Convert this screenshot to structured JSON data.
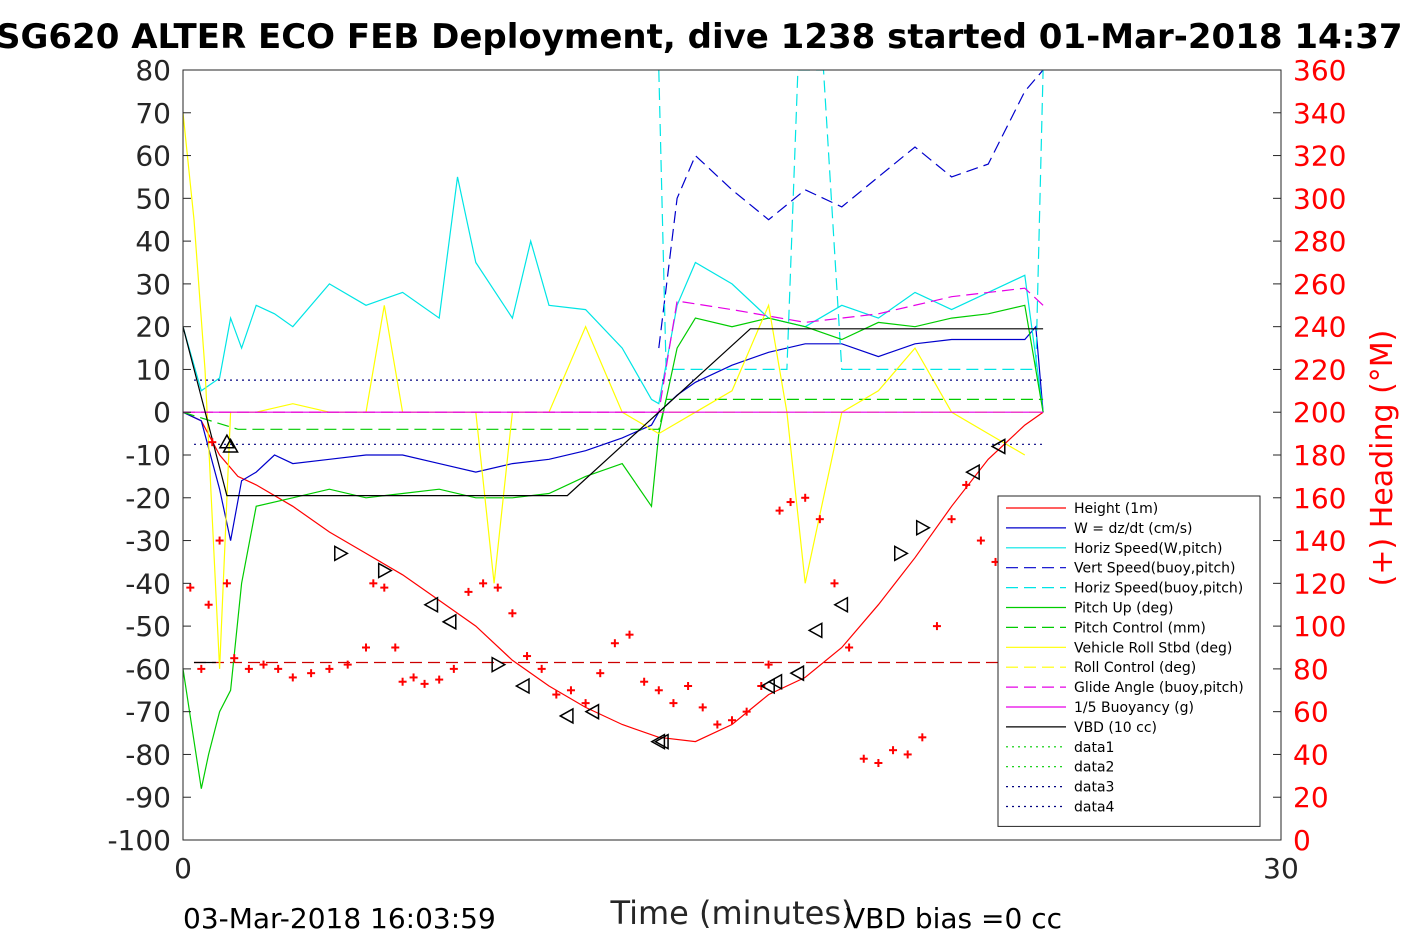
{
  "chart_data": {
    "type": "line",
    "title": "SG620 ALTER ECO FEB Deployment, dive 1238 started 01-Mar-2018 14:37",
    "xlabel": "Time (minutes)",
    "ylabel_right": "(+) Heading (°M)",
    "xlim": [
      0,
      30
    ],
    "ylim_left": [
      -100,
      80
    ],
    "ylim_right": [
      0,
      360
    ],
    "x_ticks": [
      "0",
      "30"
    ],
    "y_ticks_left": [
      "80",
      "70",
      "60",
      "50",
      "40",
      "30",
      "20",
      "10",
      "0",
      "-10",
      "-20",
      "-30",
      "-40",
      "-50",
      "-60",
      "-70",
      "-80",
      "-90",
      "-100"
    ],
    "y_ticks_right": [
      "360",
      "340",
      "320",
      "300",
      "280",
      "260",
      "240",
      "220",
      "200",
      "180",
      "160",
      "140",
      "120",
      "100",
      "80",
      "60",
      "40",
      "20",
      "0"
    ],
    "footer_left": "03-Mar-2018 16:03:59",
    "footer_right": "VBD bias =0 cc",
    "legend_position": "lower-right",
    "grid": false,
    "series": [
      {
        "name": "Height (1m)",
        "color": "#ff0000",
        "style": "solid",
        "x": [
          0.0,
          0.5,
          1.0,
          1.5,
          2.0,
          3.0,
          4.0,
          5.0,
          6.0,
          7.0,
          8.0,
          9.0,
          10.0,
          11.0,
          12.0,
          13.0,
          14.0,
          15.0,
          16.0,
          17.0,
          18.0,
          19.0,
          20.0,
          21.0,
          22.0,
          23.0,
          23.5
        ],
        "y": [
          0,
          -2,
          -10,
          -15,
          -17,
          -22,
          -28,
          -33,
          -38,
          -44,
          -50,
          -58,
          -64,
          -69,
          -73,
          -76,
          -77,
          -73,
          -66,
          -62,
          -55,
          -45,
          -34,
          -22,
          -11,
          -3,
          0
        ]
      },
      {
        "name": "W = dz/dt (cm/s)",
        "color": "#0000cc",
        "style": "solid",
        "x": [
          0.0,
          0.5,
          1.0,
          1.3,
          1.6,
          2.0,
          2.5,
          3.0,
          4.0,
          5.0,
          6.0,
          7.0,
          8.0,
          9.0,
          10.0,
          11.0,
          12.0,
          12.8,
          13.0,
          13.5,
          14.0,
          15.0,
          16.0,
          17.0,
          18.0,
          19.0,
          20.0,
          21.0,
          22.0,
          23.0,
          23.3,
          23.5
        ],
        "y": [
          0,
          -2,
          -18,
          -30,
          -16,
          -14,
          -10,
          -12,
          -11,
          -10,
          -10,
          -12,
          -14,
          -12,
          -11,
          -9,
          -6,
          -3,
          0,
          4,
          7,
          11,
          14,
          16,
          16,
          13,
          16,
          17,
          17,
          17,
          20,
          0
        ]
      },
      {
        "name": "Horiz Speed(W,pitch)",
        "color": "#00e5e5",
        "style": "solid",
        "x": [
          0.0,
          0.5,
          1.0,
          1.3,
          1.6,
          2.0,
          2.5,
          3.0,
          4.0,
          5.0,
          6.0,
          7.0,
          7.5,
          8.0,
          9.0,
          9.5,
          10.0,
          11.0,
          12.0,
          12.8,
          13.0,
          13.5,
          14.0,
          15.0,
          16.0,
          17.0,
          18.0,
          19.0,
          20.0,
          21.0,
          22.0,
          23.0,
          23.5
        ],
        "y": [
          20,
          5,
          8,
          22,
          15,
          25,
          23,
          20,
          30,
          25,
          28,
          22,
          55,
          35,
          22,
          40,
          25,
          24,
          15,
          3,
          2,
          25,
          35,
          30,
          22,
          20,
          25,
          22,
          28,
          24,
          28,
          32,
          0
        ]
      },
      {
        "name": "Vert Speed(buoy,pitch)",
        "color": "#0000cc",
        "style": "dashed",
        "x": [
          13.0,
          13.5,
          14.0,
          15.0,
          16.0,
          17.0,
          18.0,
          19.0,
          20.0,
          21.0,
          22.0,
          23.0,
          23.5
        ],
        "y": [
          15,
          50,
          60,
          52,
          45,
          52,
          48,
          55,
          62,
          55,
          58,
          75,
          80
        ]
      },
      {
        "name": "Horiz Speed(buoy,pitch)",
        "color": "#00e5e5",
        "style": "dashed",
        "x": [
          13.0,
          13.2,
          16.5,
          16.8,
          17.5,
          18.0,
          23.3,
          23.5
        ],
        "y": [
          80,
          10,
          10,
          80,
          80,
          10,
          10,
          80
        ]
      },
      {
        "name": "Pitch Up (deg)",
        "color": "#00cc00",
        "style": "solid",
        "x": [
          0.0,
          0.5,
          0.7,
          1.0,
          1.3,
          1.6,
          2.0,
          3.0,
          4.0,
          5.0,
          6.0,
          7.0,
          8.0,
          9.0,
          10.0,
          11.0,
          12.0,
          12.8,
          13.0,
          13.5,
          14.0,
          15.0,
          16.0,
          17.0,
          18.0,
          19.0,
          20.0,
          21.0,
          22.0,
          23.0,
          23.5
        ],
        "y": [
          -60,
          -88,
          -80,
          -70,
          -65,
          -40,
          -22,
          -20,
          -18,
          -20,
          -19,
          -18,
          -20,
          -20,
          -19,
          -15,
          -12,
          -22,
          -5,
          15,
          22,
          20,
          22,
          20,
          17,
          21,
          20,
          22,
          23,
          25,
          0
        ]
      },
      {
        "name": "Pitch Control (mm)",
        "color": "#00cc00",
        "style": "dashed",
        "x": [
          0.0,
          1.5,
          13.0,
          13.2,
          23.5
        ],
        "y": [
          0,
          -4,
          -4,
          3,
          3
        ]
      },
      {
        "name": "Vehicle Roll Stbd (deg)",
        "color": "#ffff00",
        "style": "solid",
        "x": [
          0.0,
          0.3,
          0.6,
          1.0,
          1.3,
          2.0,
          3.0,
          4.0,
          5.0,
          5.5,
          6.0,
          7.0,
          8.0,
          8.5,
          9.0,
          10.0,
          11.0,
          12.0,
          13.0,
          14.0,
          15.0,
          16.0,
          16.5,
          17.0,
          18.0,
          19.0,
          20.0,
          21.0,
          22.0,
          23.0
        ],
        "y": [
          70,
          45,
          10,
          -60,
          0,
          0,
          2,
          0,
          0,
          25,
          0,
          0,
          0,
          -40,
          0,
          0,
          20,
          0,
          -5,
          0,
          5,
          25,
          0,
          -40,
          0,
          5,
          15,
          0,
          -5,
          -10
        ]
      },
      {
        "name": "Roll Control (deg)",
        "color": "#ffff00",
        "style": "dashed",
        "x": [
          0.0,
          23.5
        ],
        "y": [
          0,
          0
        ]
      },
      {
        "name": "Glide Angle (buoy,pitch)",
        "color": "#e600e6",
        "style": "dashed",
        "x": [
          0.0,
          13.0,
          13.5,
          15.0,
          17.0,
          19.0,
          21.0,
          23.0,
          23.5
        ],
        "y": [
          0,
          0,
          26,
          24,
          21,
          23,
          27,
          29,
          25
        ]
      },
      {
        "name": "1/5 Buoyancy (g)",
        "color": "#e600e6",
        "style": "solid",
        "x": [
          0.0,
          23.5
        ],
        "y": [
          0,
          0
        ]
      },
      {
        "name": "VBD (10 cc)",
        "color": "#000000",
        "style": "solid",
        "x": [
          0.0,
          1.2,
          10.5,
          13.0,
          15.5,
          23.5
        ],
        "y": [
          20,
          -19.5,
          -19.5,
          0,
          19.5,
          19.5
        ]
      },
      {
        "name": "data1",
        "color": "#00cc00",
        "style": "dotted",
        "x": [],
        "y": []
      },
      {
        "name": "data2",
        "color": "#00cc00",
        "style": "dotted",
        "x": [],
        "y": []
      },
      {
        "name": "data3",
        "color": "#000080",
        "style": "dotted",
        "x": [
          0.3,
          23.5
        ],
        "y": [
          7.5,
          7.5
        ]
      },
      {
        "name": "data4",
        "color": "#000080",
        "style": "dotted",
        "x": [
          0.3,
          23.5
        ],
        "y": [
          -7.5,
          -7.5
        ]
      }
    ],
    "heading_points": {
      "axis": "right",
      "color": "#ff0000",
      "marker": "+",
      "x": [
        0.2,
        0.5,
        0.7,
        0.8,
        1.0,
        1.2,
        1.4,
        1.8,
        2.2,
        2.6,
        3.0,
        3.5,
        4.0,
        4.5,
        5.0,
        5.2,
        5.5,
        5.8,
        6.0,
        6.3,
        6.6,
        7.0,
        7.4,
        7.8,
        8.2,
        8.6,
        9.0,
        9.4,
        9.8,
        10.2,
        10.6,
        11.0,
        11.4,
        11.8,
        12.2,
        12.6,
        13.0,
        13.4,
        13.8,
        14.2,
        14.6,
        15.0,
        15.4,
        15.8,
        16.0,
        16.3,
        16.6,
        17.0,
        17.4,
        17.8,
        18.2,
        18.6,
        19.0,
        19.4,
        19.8,
        20.2,
        20.6,
        21.0,
        21.4,
        21.8,
        22.2,
        22.6,
        23.0
      ],
      "y": [
        118,
        80,
        110,
        186,
        140,
        120,
        85,
        80,
        82,
        80,
        76,
        78,
        80,
        82,
        90,
        120,
        118,
        90,
        74,
        76,
        73,
        75,
        80,
        116,
        120,
        118,
        106,
        86,
        80,
        68,
        70,
        64,
        78,
        92,
        96,
        74,
        70,
        64,
        72,
        62,
        54,
        56,
        60,
        72,
        82,
        154,
        158,
        160,
        150,
        120,
        90,
        38,
        36,
        42,
        40,
        48,
        100,
        150,
        166,
        140,
        130,
        110,
        120
      ]
    },
    "triangle_markers": {
      "color": "#000000",
      "x": [
        1.2,
        1.3,
        4.3,
        5.5,
        6.8,
        7.3,
        8.6,
        9.3,
        10.5,
        11.2,
        13.0,
        13.1,
        16.0,
        16.2,
        16.8,
        17.3,
        18.0,
        19.6,
        20.2,
        21.6,
        22.3
      ],
      "y": [
        -7,
        -8,
        -33,
        -37,
        -45,
        -49,
        -59,
        -64,
        -71,
        -70,
        -77,
        -77,
        -64,
        -63,
        -61,
        -51,
        -45,
        -33,
        -27,
        -14,
        -8
      ],
      "directions": [
        "up",
        "up",
        "right",
        "right",
        "left",
        "left",
        "right",
        "left",
        "left",
        "left",
        "left",
        "left",
        "left",
        "left",
        "left",
        "left",
        "left",
        "right",
        "right",
        "left",
        "left"
      ]
    },
    "horizontal_references": [
      {
        "y": -58.5,
        "color": "#cc0000",
        "style": "dashed",
        "x": [
          0.3,
          23.5
        ]
      },
      {
        "y": -58.5,
        "color": "#000000",
        "style": "solid",
        "x": [
          0.3,
          0.9
        ]
      }
    ]
  }
}
